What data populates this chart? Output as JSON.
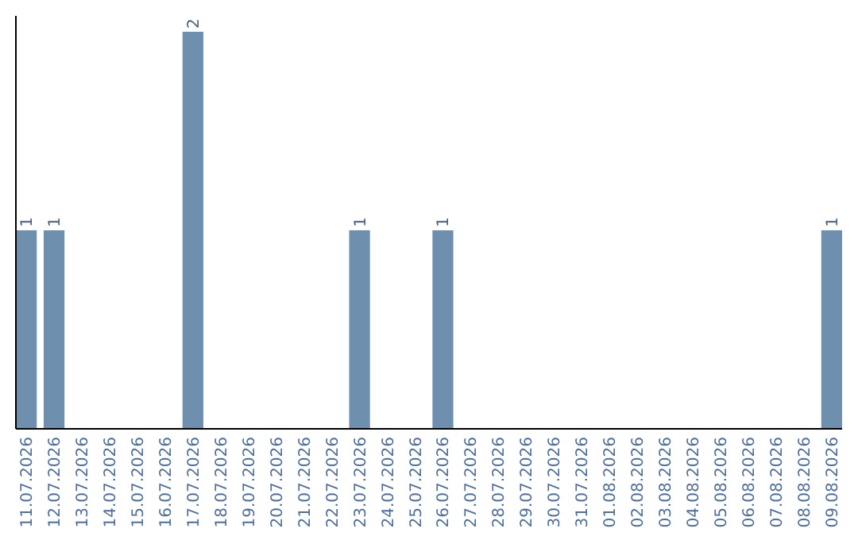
{
  "chart_data": {
    "type": "bar",
    "categories": [
      "11.07.2026",
      "12.07.2026",
      "13.07.2026",
      "14.07.2026",
      "15.07.2026",
      "16.07.2026",
      "17.07.2026",
      "18.07.2026",
      "19.07.2026",
      "20.07.2026",
      "21.07.2026",
      "22.07.2026",
      "23.07.2026",
      "24.07.2026",
      "25.07.2026",
      "26.07.2026",
      "27.07.2026",
      "28.07.2026",
      "29.07.2026",
      "30.07.2026",
      "31.07.2026",
      "01.08.2026",
      "02.08.2026",
      "03.08.2026",
      "04.08.2026",
      "05.08.2026",
      "06.08.2026",
      "07.08.2026",
      "08.08.2026",
      "09.08.2026"
    ],
    "values": [
      1,
      1,
      0,
      0,
      0,
      0,
      2,
      0,
      0,
      0,
      0,
      0,
      1,
      0,
      0,
      1,
      0,
      0,
      0,
      0,
      0,
      0,
      0,
      0,
      0,
      0,
      0,
      0,
      0,
      1
    ],
    "value_labels": [
      "1",
      "1",
      null,
      null,
      null,
      null,
      "2",
      null,
      null,
      null,
      null,
      null,
      "1",
      null,
      null,
      "1",
      null,
      null,
      null,
      null,
      null,
      null,
      null,
      null,
      null,
      null,
      null,
      null,
      null,
      "1"
    ],
    "color": "#6f8faf",
    "ylim": [
      0,
      2.08
    ],
    "tick_labels": "x"
  }
}
